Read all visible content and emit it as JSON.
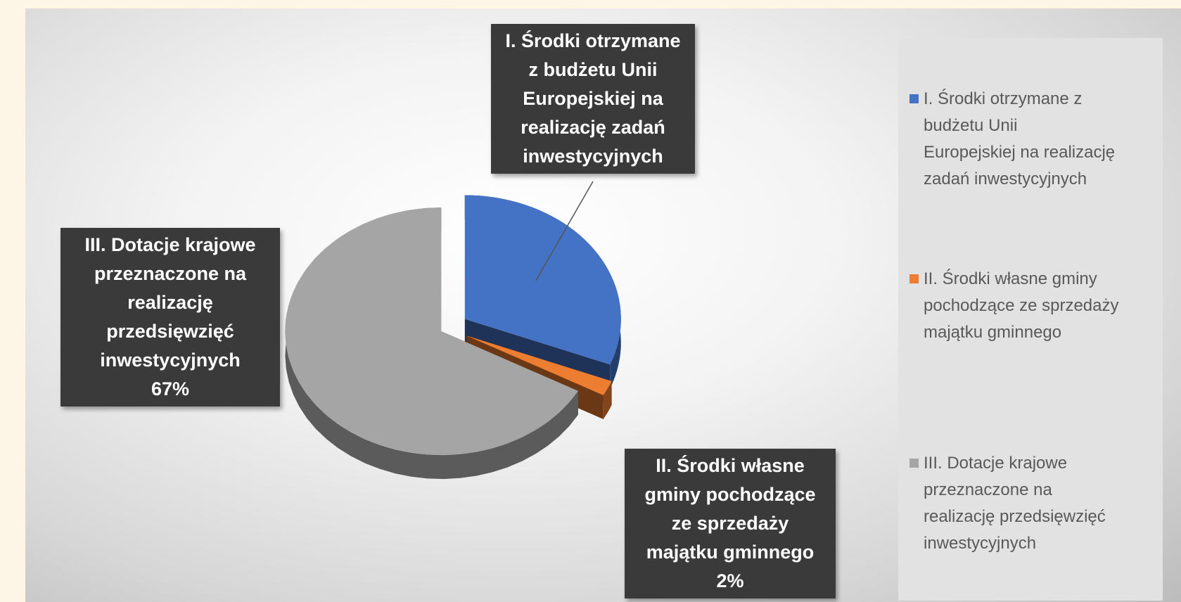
{
  "chart_data": {
    "type": "pie",
    "style": "3d-exploded",
    "categories": [
      "I. Środki otrzymane z budżetu Unii Europejskiej na realizację zadań inwestycyjnych",
      "II. Środki własne gminy pochodzące ze sprzedaży majątku gminnego",
      "III. Dotacje krajowe przeznaczone na realizację przedsięwzięć inwestycyjnych"
    ],
    "values": [
      31,
      2,
      67
    ],
    "colors": [
      "#4472c4",
      "#ed7d31",
      "#a5a5a5"
    ],
    "legend_position": "right",
    "data_labels": [
      {
        "text": "I. Środki otrzymane z budżetu Unii Europejskiej na realizację zadań inwestycyjnych",
        "lines": [
          "I. Środki otrzymane",
          "z budżetu Unii",
          "Europejskiej na",
          "realizację zadań",
          "inwestycyjnych"
        ]
      },
      {
        "text": "II. Środki własne gminy pochodzące ze sprzedaży majątku gminnego 2%",
        "lines": [
          "II. Środki własne",
          "gminy pochodzące",
          "ze sprzedaży",
          "majątku gminnego",
          "2%"
        ]
      },
      {
        "text": "III. Dotacje krajowe przeznaczone na realizację przedsięwzięć inwestycyjnych 67%",
        "lines": [
          "III. Dotacje krajowe",
          "przeznaczone na",
          "realizację",
          "przedsięwzięć",
          "inwestycyjnych",
          "67%"
        ]
      }
    ],
    "legend": [
      {
        "lines": [
          "I. Środki otrzymane z",
          "budżetu Unii",
          "Europejskiej na realizację",
          "zadań inwestycyjnych"
        ],
        "color": "#4472c4"
      },
      {
        "lines": [
          "II. Środki własne gminy",
          "pochodzące ze sprzedaży",
          "majątku gminnego"
        ],
        "color": "#ed7d31"
      },
      {
        "lines": [
          "III. Dotacje krajowe",
          "przeznaczone na",
          "realizację przedsięwzięć",
          "inwestycyjnych"
        ],
        "color": "#a5a5a5"
      }
    ]
  }
}
